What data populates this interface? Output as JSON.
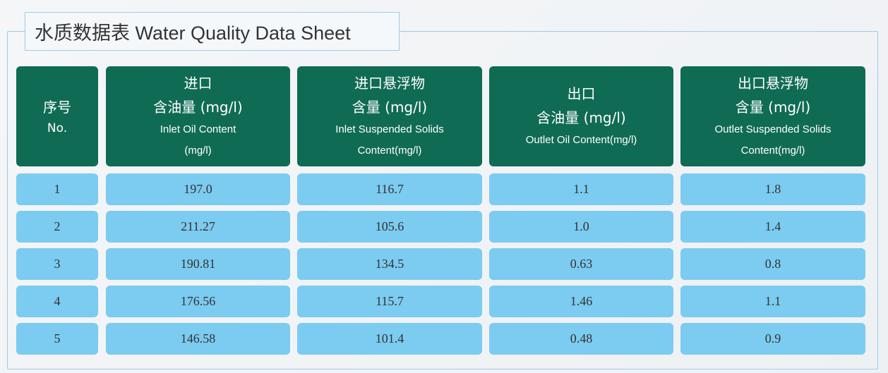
{
  "title": "水质数据表  Water Quality Data Sheet",
  "headers": [
    {
      "zh1": "序号",
      "zh2": "",
      "en1": "No.",
      "en2": ""
    },
    {
      "zh1": "进口",
      "zh2": "含油量 (mg/l)",
      "en1": "Inlet Oil Content",
      "en2": "(mg/l)"
    },
    {
      "zh1": "进口悬浮物",
      "zh2": "含量 (mg/l)",
      "en1": "Inlet Suspended Solids",
      "en2": "Content(mg/l)"
    },
    {
      "zh1": "出口",
      "zh2": "含油量 (mg/l)",
      "en1": "Outlet Oil Content(mg/l)",
      "en2": ""
    },
    {
      "zh1": "出口悬浮物",
      "zh2": "含量 (mg/l)",
      "en1": "Outlet Suspended Solids",
      "en2": "Content(mg/l)"
    }
  ],
  "rows": [
    [
      "1",
      "197.0",
      "116.7",
      "1.1",
      "1.8"
    ],
    [
      "2",
      "211.27",
      "105.6",
      "1.0",
      "1.4"
    ],
    [
      "3",
      "190.81",
      "134.5",
      "0.63",
      "0.8"
    ],
    [
      "4",
      "176.56",
      "115.7",
      "1.46",
      "1.1"
    ],
    [
      "5",
      "146.58",
      "101.4",
      "0.48",
      "0.9"
    ]
  ],
  "colors": {
    "header": "#106b55",
    "cell": "#7ccbf0",
    "border": "#9fcbe6"
  }
}
